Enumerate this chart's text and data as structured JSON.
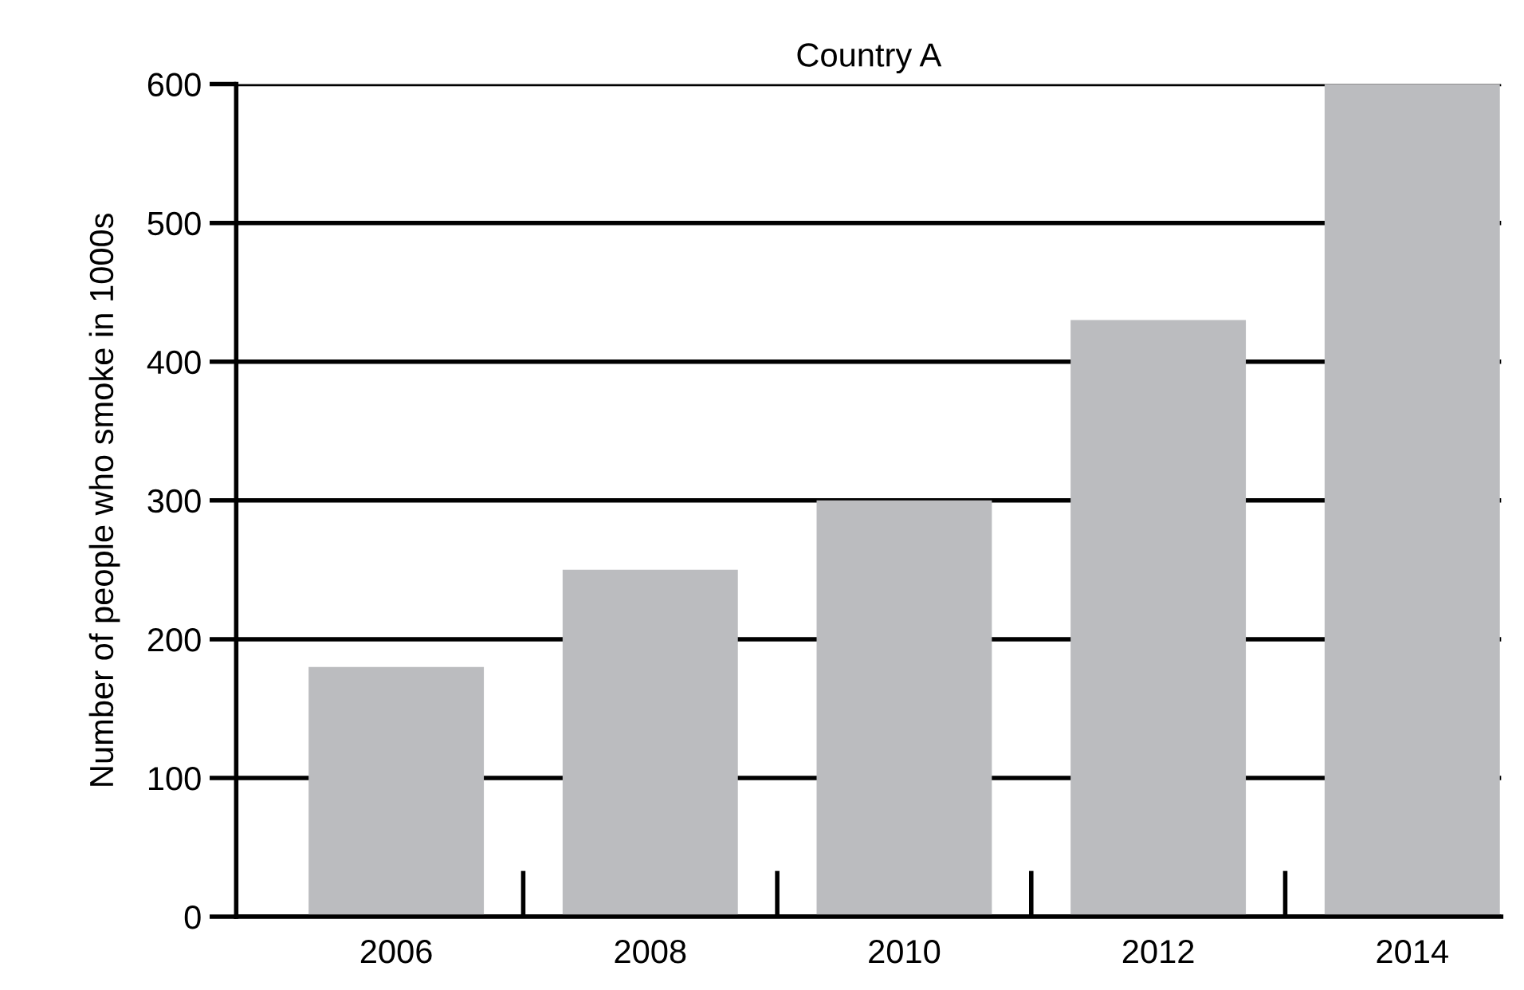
{
  "chart_data": {
    "type": "bar",
    "title": "Country A",
    "ylabel": "Number of people who smoke in 1000s",
    "categories": [
      "2006",
      "2008",
      "2010",
      "2012",
      "2014"
    ],
    "values": [
      180,
      250,
      300,
      430,
      600
    ],
    "color": "#bbbcbf",
    "ylim": [
      0,
      600
    ],
    "yticks": [
      0,
      100,
      200,
      300,
      400,
      500,
      600
    ],
    "grid": "y"
  }
}
